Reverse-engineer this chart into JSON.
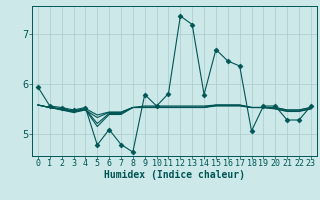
{
  "background_color": "#cce8e8",
  "grid_color": "#aacccc",
  "line_color": "#005555",
  "xlabel": "Humidex (Indice chaleur)",
  "xlim": [
    -0.5,
    23.5
  ],
  "ylim": [
    4.55,
    7.55
  ],
  "yticks": [
    5,
    6,
    7
  ],
  "xticks": [
    0,
    1,
    2,
    3,
    4,
    5,
    6,
    7,
    8,
    9,
    10,
    11,
    12,
    13,
    14,
    15,
    16,
    17,
    18,
    19,
    20,
    21,
    22,
    23
  ],
  "series": [
    [
      5.93,
      5.55,
      5.52,
      5.47,
      5.52,
      4.77,
      5.08,
      4.78,
      4.63,
      5.78,
      5.55,
      5.8,
      7.35,
      7.18,
      5.78,
      6.68,
      6.45,
      6.35,
      5.05,
      5.55,
      5.55,
      5.27,
      5.27,
      5.55
    ],
    [
      5.57,
      5.52,
      5.47,
      5.42,
      5.47,
      5.32,
      5.42,
      5.42,
      5.52,
      5.52,
      5.52,
      5.52,
      5.52,
      5.52,
      5.52,
      5.57,
      5.57,
      5.57,
      5.52,
      5.52,
      5.52,
      5.47,
      5.47,
      5.52
    ],
    [
      5.57,
      5.52,
      5.5,
      5.45,
      5.5,
      5.37,
      5.43,
      5.43,
      5.52,
      5.55,
      5.55,
      5.55,
      5.55,
      5.55,
      5.55,
      5.57,
      5.57,
      5.57,
      5.52,
      5.52,
      5.52,
      5.47,
      5.47,
      5.52
    ],
    [
      5.57,
      5.52,
      5.49,
      5.44,
      5.49,
      5.2,
      5.4,
      5.4,
      5.52,
      5.53,
      5.53,
      5.53,
      5.53,
      5.53,
      5.53,
      5.56,
      5.56,
      5.56,
      5.52,
      5.52,
      5.5,
      5.45,
      5.45,
      5.5
    ],
    [
      5.57,
      5.52,
      5.48,
      5.43,
      5.48,
      5.14,
      5.38,
      5.38,
      5.52,
      5.52,
      5.52,
      5.52,
      5.52,
      5.52,
      5.52,
      5.55,
      5.55,
      5.55,
      5.52,
      5.52,
      5.49,
      5.44,
      5.44,
      5.49
    ]
  ],
  "marker_style": "D",
  "marker_size": 2.5,
  "linewidth": 0.8,
  "tick_fontsize": 6.0,
  "xlabel_fontsize": 7.0
}
